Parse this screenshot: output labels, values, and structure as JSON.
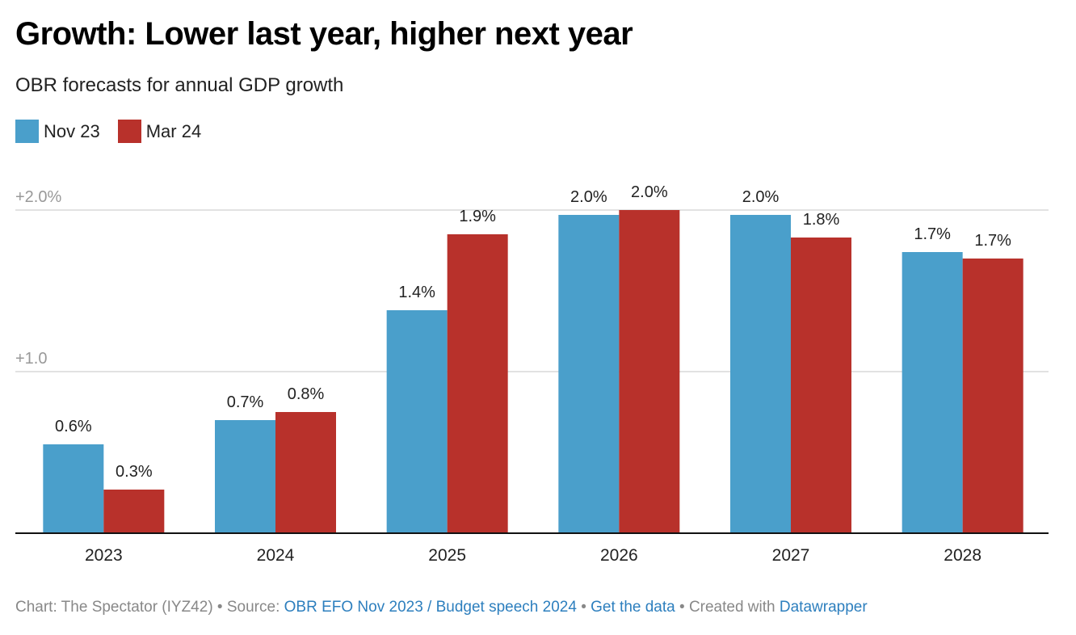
{
  "header": {
    "title": "Growth: Lower last year, higher next year",
    "subtitle": "OBR forecasts for annual GDP growth"
  },
  "legend": [
    {
      "label": "Nov 23",
      "color": "#4a9fcb"
    },
    {
      "label": "Mar 24",
      "color": "#b8312b"
    }
  ],
  "chart_data": {
    "type": "bar",
    "title": "Growth: Lower last year, higher next year",
    "subtitle": "OBR forecasts for annual GDP growth",
    "xlabel": "",
    "ylabel": "",
    "categories": [
      "2023",
      "2024",
      "2025",
      "2026",
      "2027",
      "2028"
    ],
    "series": [
      {
        "name": "Nov 23",
        "color": "#4a9fcb",
        "values": [
          0.55,
          0.7,
          1.38,
          1.97,
          1.97,
          1.74
        ],
        "labels": [
          "0.6%",
          "0.7%",
          "1.4%",
          "2.0%",
          "2.0%",
          "1.7%"
        ]
      },
      {
        "name": "Mar 24",
        "color": "#b8312b",
        "values": [
          0.27,
          0.75,
          1.85,
          2.0,
          1.83,
          1.7
        ],
        "labels": [
          "0.3%",
          "0.8%",
          "1.9%",
          "2.0%",
          "1.8%",
          "1.7%"
        ]
      }
    ],
    "yticks": [
      {
        "value": 1.0,
        "label": "+1.0"
      },
      {
        "value": 2.0,
        "label": "+2.0%"
      }
    ],
    "ylim": [
      0,
      2.0
    ],
    "grid": true,
    "legend_position": "top-left"
  },
  "footer": {
    "chart_credit": "Chart: The Spectator (IYZ42)",
    "sep": " • ",
    "source_label": "Source: ",
    "source_link": "OBR EFO Nov 2023 / Budget speech 2024",
    "get_data_link": "Get the data",
    "created_with": "Created with ",
    "datawrapper_link": "Datawrapper"
  }
}
